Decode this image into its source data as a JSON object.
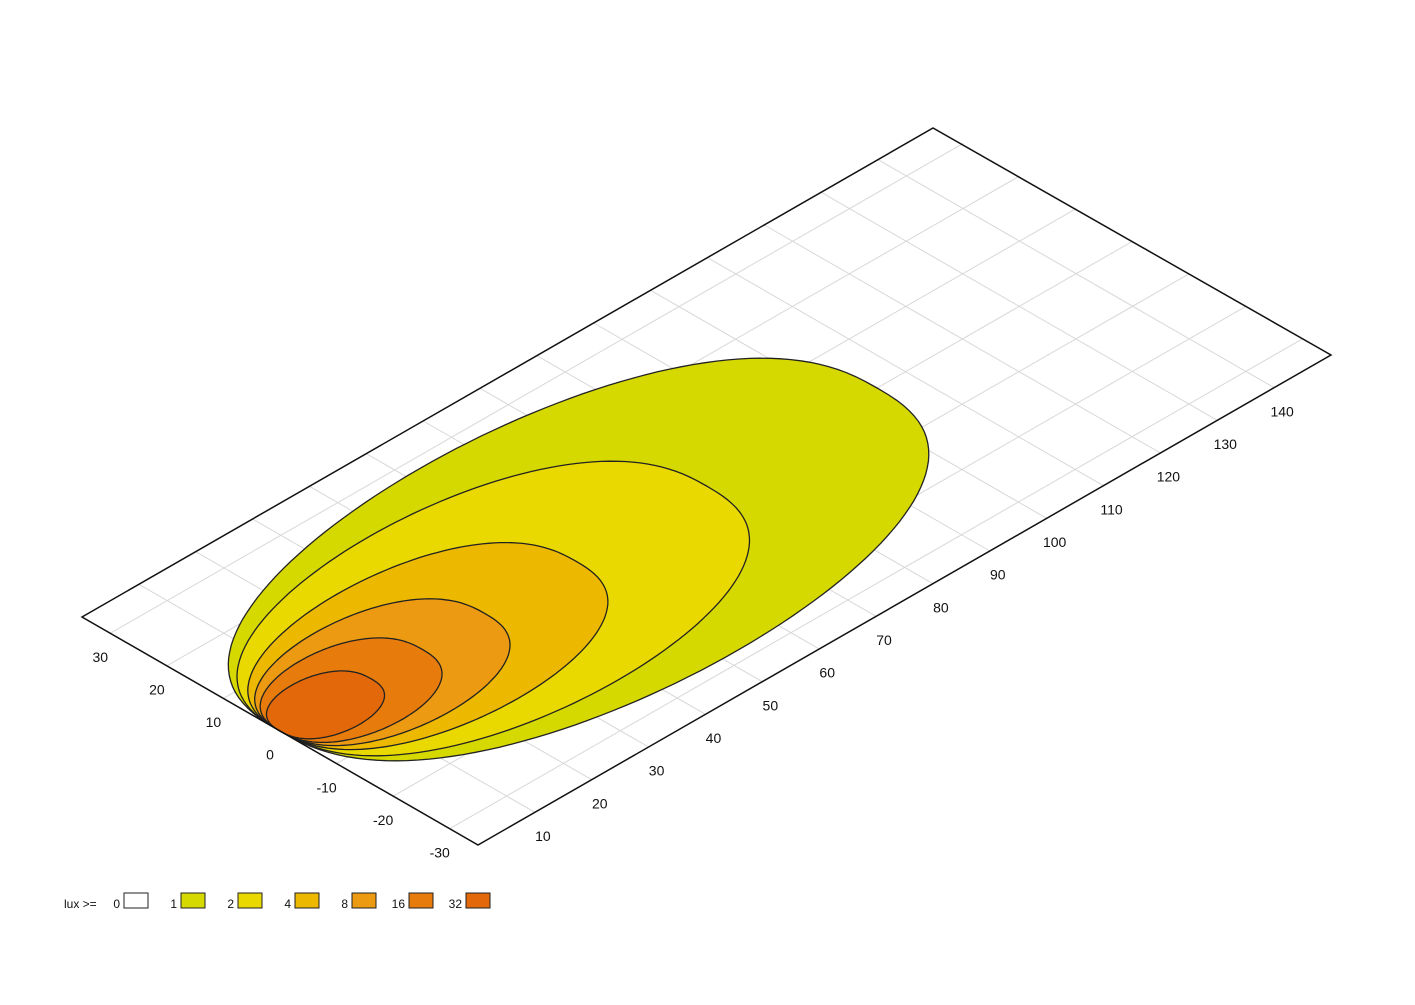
{
  "chart_data": {
    "type": "isolux",
    "xlim": [
      0,
      150
    ],
    "ylim": [
      -35,
      35
    ],
    "xticks": [
      10,
      20,
      30,
      40,
      50,
      60,
      70,
      80,
      90,
      100,
      110,
      120,
      130,
      140
    ],
    "yticks": [
      -30,
      -20,
      -10,
      0,
      10,
      20,
      30
    ],
    "grid": true,
    "legend_title": "lux >=",
    "levels": [
      {
        "value": 0,
        "color": "#ffffff"
      },
      {
        "value": 1,
        "color": "#d6d900"
      },
      {
        "value": 2,
        "color": "#ead900"
      },
      {
        "value": 4,
        "color": "#ecb800"
      },
      {
        "value": 8,
        "color": "#eb9a12"
      },
      {
        "value": 16,
        "color": "#e77c0c"
      },
      {
        "value": 32,
        "color": "#e2680a"
      }
    ],
    "contours": [
      {
        "level": 1,
        "length": 105,
        "half_width": 28
      },
      {
        "level": 2,
        "length": 75,
        "half_width": 22
      },
      {
        "level": 4,
        "length": 52,
        "half_width": 16
      },
      {
        "level": 8,
        "length": 36,
        "half_width": 12
      },
      {
        "level": 16,
        "length": 25,
        "half_width": 9
      },
      {
        "level": 32,
        "length": 16,
        "half_width": 6
      }
    ]
  }
}
